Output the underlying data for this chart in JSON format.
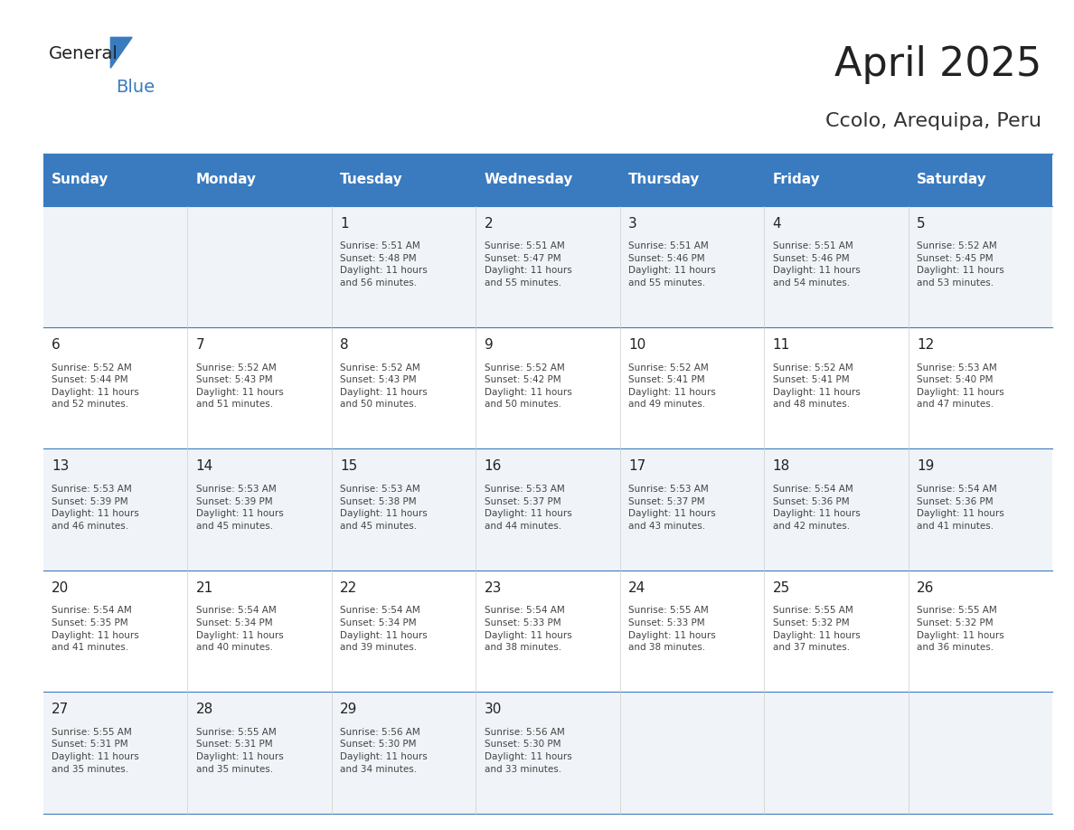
{
  "title": "April 2025",
  "subtitle": "Ccolo, Arequipa, Peru",
  "days_of_week": [
    "Sunday",
    "Monday",
    "Tuesday",
    "Wednesday",
    "Thursday",
    "Friday",
    "Saturday"
  ],
  "header_bg": "#3a7bbf",
  "header_text": "#ffffff",
  "row_bg_odd": "#f0f4f8",
  "row_bg_even": "#ffffff",
  "cell_border": "#3a7bbf",
  "title_color": "#222222",
  "subtitle_color": "#333333",
  "day_num_color": "#222222",
  "cell_text_color": "#444444",
  "weeks": [
    [
      {
        "day": "",
        "text": ""
      },
      {
        "day": "",
        "text": ""
      },
      {
        "day": "1",
        "text": "Sunrise: 5:51 AM\nSunset: 5:48 PM\nDaylight: 11 hours\nand 56 minutes."
      },
      {
        "day": "2",
        "text": "Sunrise: 5:51 AM\nSunset: 5:47 PM\nDaylight: 11 hours\nand 55 minutes."
      },
      {
        "day": "3",
        "text": "Sunrise: 5:51 AM\nSunset: 5:46 PM\nDaylight: 11 hours\nand 55 minutes."
      },
      {
        "day": "4",
        "text": "Sunrise: 5:51 AM\nSunset: 5:46 PM\nDaylight: 11 hours\nand 54 minutes."
      },
      {
        "day": "5",
        "text": "Sunrise: 5:52 AM\nSunset: 5:45 PM\nDaylight: 11 hours\nand 53 minutes."
      }
    ],
    [
      {
        "day": "6",
        "text": "Sunrise: 5:52 AM\nSunset: 5:44 PM\nDaylight: 11 hours\nand 52 minutes."
      },
      {
        "day": "7",
        "text": "Sunrise: 5:52 AM\nSunset: 5:43 PM\nDaylight: 11 hours\nand 51 minutes."
      },
      {
        "day": "8",
        "text": "Sunrise: 5:52 AM\nSunset: 5:43 PM\nDaylight: 11 hours\nand 50 minutes."
      },
      {
        "day": "9",
        "text": "Sunrise: 5:52 AM\nSunset: 5:42 PM\nDaylight: 11 hours\nand 50 minutes."
      },
      {
        "day": "10",
        "text": "Sunrise: 5:52 AM\nSunset: 5:41 PM\nDaylight: 11 hours\nand 49 minutes."
      },
      {
        "day": "11",
        "text": "Sunrise: 5:52 AM\nSunset: 5:41 PM\nDaylight: 11 hours\nand 48 minutes."
      },
      {
        "day": "12",
        "text": "Sunrise: 5:53 AM\nSunset: 5:40 PM\nDaylight: 11 hours\nand 47 minutes."
      }
    ],
    [
      {
        "day": "13",
        "text": "Sunrise: 5:53 AM\nSunset: 5:39 PM\nDaylight: 11 hours\nand 46 minutes."
      },
      {
        "day": "14",
        "text": "Sunrise: 5:53 AM\nSunset: 5:39 PM\nDaylight: 11 hours\nand 45 minutes."
      },
      {
        "day": "15",
        "text": "Sunrise: 5:53 AM\nSunset: 5:38 PM\nDaylight: 11 hours\nand 45 minutes."
      },
      {
        "day": "16",
        "text": "Sunrise: 5:53 AM\nSunset: 5:37 PM\nDaylight: 11 hours\nand 44 minutes."
      },
      {
        "day": "17",
        "text": "Sunrise: 5:53 AM\nSunset: 5:37 PM\nDaylight: 11 hours\nand 43 minutes."
      },
      {
        "day": "18",
        "text": "Sunrise: 5:54 AM\nSunset: 5:36 PM\nDaylight: 11 hours\nand 42 minutes."
      },
      {
        "day": "19",
        "text": "Sunrise: 5:54 AM\nSunset: 5:36 PM\nDaylight: 11 hours\nand 41 minutes."
      }
    ],
    [
      {
        "day": "20",
        "text": "Sunrise: 5:54 AM\nSunset: 5:35 PM\nDaylight: 11 hours\nand 41 minutes."
      },
      {
        "day": "21",
        "text": "Sunrise: 5:54 AM\nSunset: 5:34 PM\nDaylight: 11 hours\nand 40 minutes."
      },
      {
        "day": "22",
        "text": "Sunrise: 5:54 AM\nSunset: 5:34 PM\nDaylight: 11 hours\nand 39 minutes."
      },
      {
        "day": "23",
        "text": "Sunrise: 5:54 AM\nSunset: 5:33 PM\nDaylight: 11 hours\nand 38 minutes."
      },
      {
        "day": "24",
        "text": "Sunrise: 5:55 AM\nSunset: 5:33 PM\nDaylight: 11 hours\nand 38 minutes."
      },
      {
        "day": "25",
        "text": "Sunrise: 5:55 AM\nSunset: 5:32 PM\nDaylight: 11 hours\nand 37 minutes."
      },
      {
        "day": "26",
        "text": "Sunrise: 5:55 AM\nSunset: 5:32 PM\nDaylight: 11 hours\nand 36 minutes."
      }
    ],
    [
      {
        "day": "27",
        "text": "Sunrise: 5:55 AM\nSunset: 5:31 PM\nDaylight: 11 hours\nand 35 minutes."
      },
      {
        "day": "28",
        "text": "Sunrise: 5:55 AM\nSunset: 5:31 PM\nDaylight: 11 hours\nand 35 minutes."
      },
      {
        "day": "29",
        "text": "Sunrise: 5:56 AM\nSunset: 5:30 PM\nDaylight: 11 hours\nand 34 minutes."
      },
      {
        "day": "30",
        "text": "Sunrise: 5:56 AM\nSunset: 5:30 PM\nDaylight: 11 hours\nand 33 minutes."
      },
      {
        "day": "",
        "text": ""
      },
      {
        "day": "",
        "text": ""
      },
      {
        "day": "",
        "text": ""
      }
    ]
  ]
}
